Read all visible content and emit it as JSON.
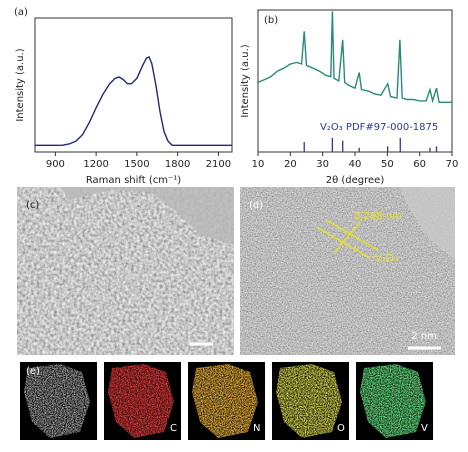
{
  "chart_data": [
    {
      "type": "line",
      "panel_label": "(a)",
      "xlabel": "Raman shift (cm⁻¹)",
      "ylabel": "Intensity (a.u.)",
      "xlim": [
        750,
        2200
      ],
      "ylim": [
        0,
        1
      ],
      "xticks": [
        900,
        1200,
        1500,
        1800,
        2100
      ],
      "series": [
        {
          "type": "line",
          "color": "#1f2a7a",
          "x": [
            750,
            850,
            950,
            1000,
            1050,
            1100,
            1150,
            1200,
            1250,
            1300,
            1340,
            1370,
            1400,
            1430,
            1460,
            1500,
            1540,
            1570,
            1590,
            1610,
            1640,
            1670,
            1700,
            1730,
            1760,
            1850,
            1950,
            2050,
            2200
          ],
          "values": [
            0.05,
            0.05,
            0.05,
            0.06,
            0.08,
            0.13,
            0.22,
            0.33,
            0.43,
            0.51,
            0.55,
            0.56,
            0.54,
            0.51,
            0.51,
            0.55,
            0.64,
            0.7,
            0.71,
            0.66,
            0.5,
            0.3,
            0.15,
            0.08,
            0.05,
            0.05,
            0.05,
            0.05,
            0.05
          ]
        }
      ]
    },
    {
      "type": "line",
      "panel_label": "(b)",
      "xlabel": "2θ (degree)",
      "ylabel": "Intensity (a.u.)",
      "xlim": [
        10,
        70
      ],
      "ylim": [
        0,
        1
      ],
      "xticks": [
        10,
        20,
        30,
        40,
        50,
        60,
        70
      ],
      "annotation": "V₂O₃ PDF#97-000-1875",
      "series": [
        {
          "type": "line",
          "color": "#2a8a78",
          "x": [
            10,
            12,
            14,
            16,
            18,
            20,
            22,
            23.5,
            24.3,
            25,
            27,
            29,
            31,
            32.5,
            33,
            33.5,
            35,
            36.2,
            36.8,
            38,
            40,
            41.3,
            42,
            44,
            46,
            48,
            50.1,
            51,
            53,
            53.9,
            54.6,
            56,
            58,
            60,
            62,
            63.2,
            64,
            65.2,
            66,
            68,
            70
          ],
          "values": [
            0.49,
            0.51,
            0.53,
            0.57,
            0.59,
            0.62,
            0.63,
            0.62,
            0.85,
            0.61,
            0.59,
            0.57,
            0.54,
            0.53,
            0.99,
            0.52,
            0.5,
            0.79,
            0.49,
            0.47,
            0.45,
            0.56,
            0.44,
            0.43,
            0.41,
            0.4,
            0.48,
            0.39,
            0.38,
            0.79,
            0.38,
            0.37,
            0.37,
            0.36,
            0.36,
            0.44,
            0.36,
            0.45,
            0.35,
            0.35,
            0.35
          ]
        },
        {
          "type": "stick",
          "color": "#2b3a9a",
          "x": [
            24.3,
            33,
            36.2,
            41.3,
            50.1,
            54,
            63.2,
            65.2
          ],
          "values": [
            0.07,
            0.1,
            0.08,
            0.03,
            0.04,
            0.1,
            0.03,
            0.04
          ]
        }
      ]
    }
  ],
  "images": {
    "c": {
      "label": "(c)"
    },
    "d": {
      "label": "(d)",
      "spacing": "0.248 nm",
      "phase": "V₂O₃",
      "scale_bar": "2 nm"
    },
    "e": {
      "label": "(e)",
      "elements": [
        "C",
        "N",
        "O",
        "V"
      ]
    }
  }
}
